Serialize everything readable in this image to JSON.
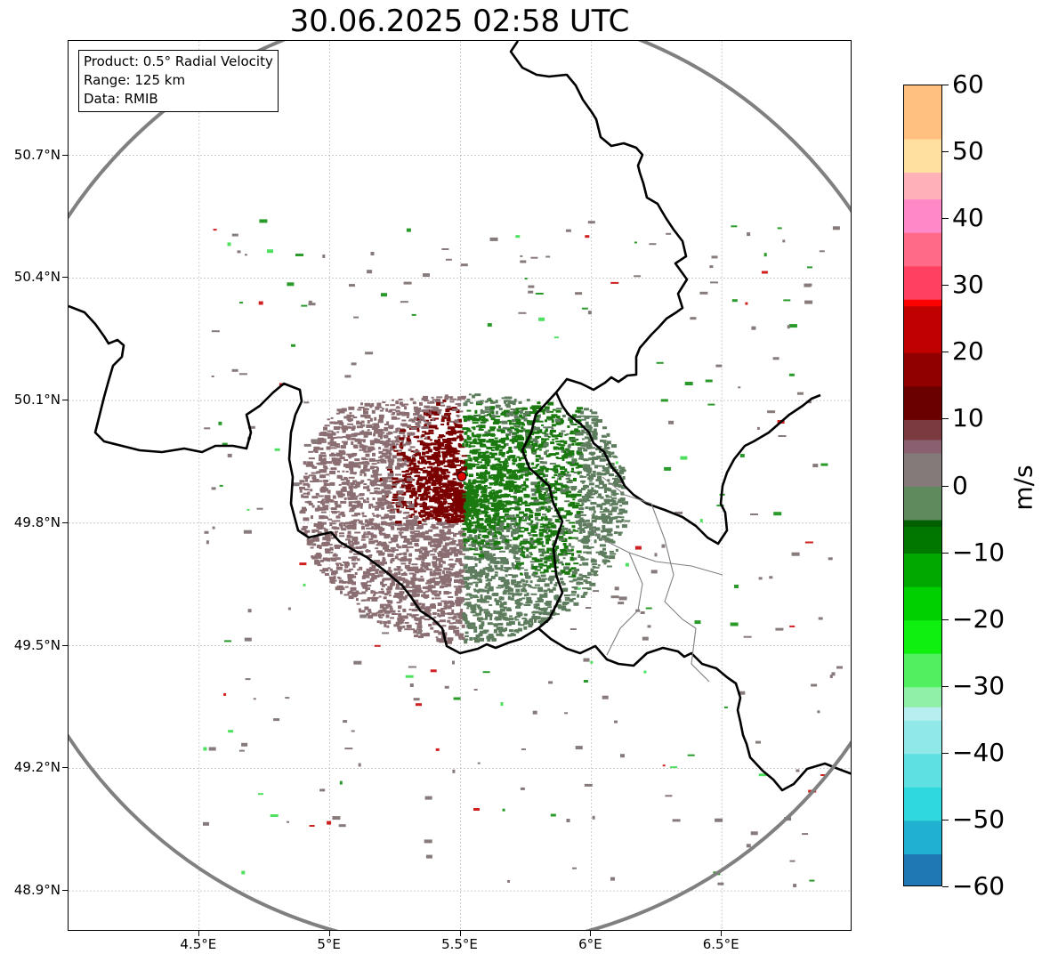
{
  "title": "30.06.2025 02:58 UTC",
  "info_box": {
    "product": "Product: 0.5° Radial Velocity",
    "range": "Range: 125 km",
    "source": "Data: RMIB"
  },
  "map": {
    "lon_range": [
      4.0,
      7.0
    ],
    "lat_range": [
      48.8,
      50.98
    ],
    "lat_labels": [
      "50.7°N",
      "50.4°N",
      "50.1°N",
      "49.8°N",
      "49.5°N",
      "49.2°N",
      "48.9°N"
    ],
    "lat_values": [
      50.7,
      50.4,
      50.1,
      49.8,
      49.5,
      49.2,
      48.9
    ],
    "lon_labels": [
      "4.5°E",
      "5°E",
      "5.5°E",
      "6°E",
      "6.5°E"
    ],
    "lon_values": [
      4.5,
      5.0,
      5.5,
      6.0,
      6.5
    ],
    "radar_site": {
      "lon": 5.505,
      "lat": 49.914
    },
    "range_ring_km": 125,
    "colors": {
      "ring": "#808080",
      "border": "#000000",
      "admin_border": "#808080",
      "grid": "#b0b0b0",
      "radar_marker": "#e00000",
      "inbound_near": "#1a7a10",
      "inbound_far": "#5e7d5e",
      "outbound_near": "#7a0000",
      "outbound_far": "#8a6e72"
    }
  },
  "colorbar": {
    "unit": "m/s",
    "min": -60,
    "max": 60,
    "tick_labels": [
      "60",
      "50",
      "40",
      "30",
      "20",
      "10",
      "0",
      "−10",
      "−20",
      "−30",
      "−40",
      "−50",
      "−60"
    ],
    "tick_values": [
      60,
      50,
      40,
      30,
      20,
      10,
      0,
      -10,
      -20,
      -30,
      -40,
      -50,
      -60
    ],
    "color_stops": [
      {
        "v": -60,
        "c": "#1f77b4"
      },
      {
        "v": -55,
        "c": "#20b0d0"
      },
      {
        "v": -50,
        "c": "#2ed8dc"
      },
      {
        "v": -45,
        "c": "#5ee0e0"
      },
      {
        "v": -40,
        "c": "#90e8e8"
      },
      {
        "v": -35,
        "c": "#b8eef0"
      },
      {
        "v": -33,
        "c": "#90f0a8"
      },
      {
        "v": -30,
        "c": "#50f060"
      },
      {
        "v": -25,
        "c": "#10f010"
      },
      {
        "v": -20,
        "c": "#00d000"
      },
      {
        "v": -15,
        "c": "#00a800"
      },
      {
        "v": -10,
        "c": "#007800"
      },
      {
        "v": -6,
        "c": "#006000"
      },
      {
        "v": -5,
        "c": "#5e8a5e"
      },
      {
        "v": 0,
        "c": "#847a7a"
      },
      {
        "v": 5,
        "c": "#8a6070"
      },
      {
        "v": 7,
        "c": "#7a3a40"
      },
      {
        "v": 10,
        "c": "#6a0000"
      },
      {
        "v": 15,
        "c": "#900000"
      },
      {
        "v": 20,
        "c": "#c00000"
      },
      {
        "v": 27,
        "c": "#ff0000"
      },
      {
        "v": 28,
        "c": "#ff4060"
      },
      {
        "v": 33,
        "c": "#ff6a88"
      },
      {
        "v": 38,
        "c": "#ff88c8"
      },
      {
        "v": 43,
        "c": "#ffb0b8"
      },
      {
        "v": 47,
        "c": "#ffe0a0"
      },
      {
        "v": 52,
        "c": "#ffc080"
      },
      {
        "v": 60,
        "c": "#ffa060"
      }
    ]
  }
}
